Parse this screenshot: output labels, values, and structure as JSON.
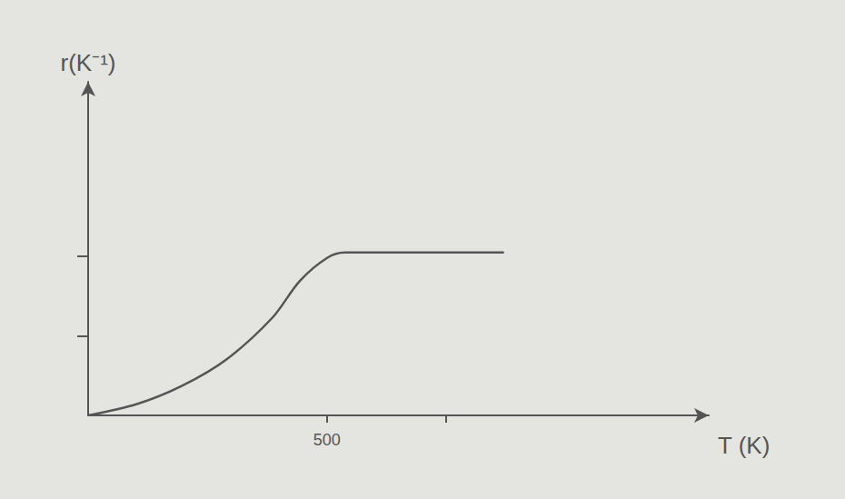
{
  "chart_data": {
    "type": "line",
    "x_label": "T (K)",
    "y_label": "r(K⁻¹)",
    "x": [
      0,
      101,
      196,
      291,
      386,
      443,
      500,
      538,
      871
    ],
    "values": [
      0,
      0.14,
      0.37,
      0.71,
      1.23,
      1.69,
      1.98,
      2.05,
      2.05
    ],
    "color": "#555555",
    "line_style": "solid",
    "xlim": [
      0,
      1300
    ],
    "ylim": [
      0,
      4.2
    ],
    "xticks": [
      500,
      {
        "value": 750,
        "label": null
      }
    ],
    "yticks": [
      1,
      2
    ],
    "grid": false,
    "tick_labels": "x"
  }
}
